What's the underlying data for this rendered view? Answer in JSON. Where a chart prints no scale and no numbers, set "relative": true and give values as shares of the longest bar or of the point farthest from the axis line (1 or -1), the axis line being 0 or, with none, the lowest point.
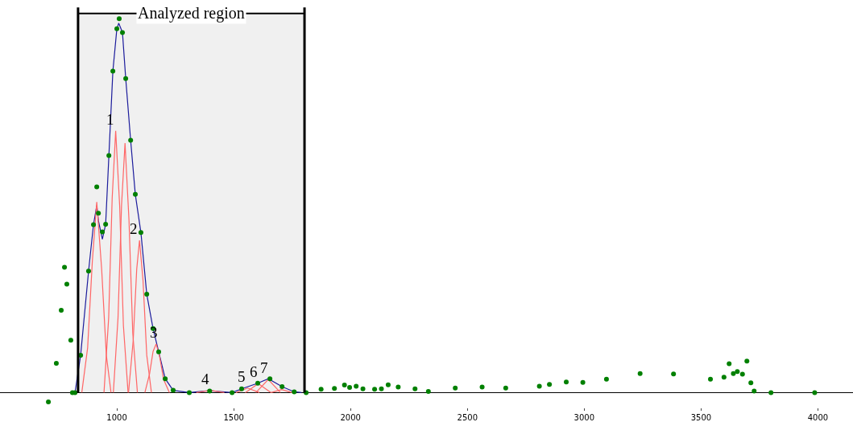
{
  "chart_data": {
    "type": "scatter",
    "relative": true,
    "xlim": [
      500,
      4150
    ],
    "xticks": [
      1000,
      1500,
      2000,
      2500,
      3000,
      3500,
      4000
    ],
    "grid": false,
    "line_style": "solid",
    "series": [
      {
        "marker": "circle",
        "color": "#008000",
        "x": [
          707,
          741,
          762,
          776,
          786,
          803,
          810,
          821,
          845,
          879,
          900,
          914,
          921,
          938,
          952,
          966,
          983,
          1000,
          1010,
          1024,
          1038,
          1059,
          1079,
          1103,
          1128,
          1155,
          1179,
          1207,
          1241,
          1310,
          1397,
          1493,
          1534,
          1603,
          1655,
          1707,
          1759,
          1810,
          1874,
          1931,
          1974,
          1996,
          2024,
          2053,
          2103,
          2132,
          2161,
          2204,
          2276,
          2333,
          2448,
          2563,
          2664,
          2808,
          2851,
          2923,
          2994,
          3095,
          3239,
          3382,
          3540,
          3598,
          3620,
          3638,
          3655,
          3677,
          3696,
          3713,
          3727,
          3799,
          3986
        ],
        "values": [
          -0.025,
          0.078,
          0.22,
          0.335,
          0.29,
          0.14,
          0,
          0,
          0.1,
          0.325,
          0.449,
          0.55,
          0.48,
          0.43,
          0.45,
          0.634,
          0.86,
          0.973,
          1.0,
          0.963,
          0.84,
          0.675,
          0.53,
          0.428,
          0.263,
          0.171,
          0.109,
          0.037,
          0.006,
          0,
          0.004,
          0,
          0.01,
          0.025,
          0.037,
          0.016,
          0.002,
          0,
          0.009,
          0.011,
          0.02,
          0.014,
          0.017,
          0.01,
          0.009,
          0.01,
          0.021,
          0.015,
          0.01,
          0.003,
          0.012,
          0.015,
          0.012,
          0.017,
          0.022,
          0.028,
          0.027,
          0.036,
          0.051,
          0.05,
          0.036,
          0.041,
          0.077,
          0.051,
          0.056,
          0.049,
          0.084,
          0.026,
          0.004,
          0,
          0
        ]
      },
      {
        "type": "line",
        "color": "#1c1c9c",
        "x": [
          821,
          845,
          879,
          900,
          914,
          921,
          938,
          952,
          966,
          983,
          1000,
          1008,
          1024,
          1038,
          1059,
          1079,
          1103,
          1128,
          1155,
          1179,
          1207,
          1241,
          1310,
          1397,
          1493,
          1534,
          1603,
          1648,
          1707,
          1759,
          1790
        ],
        "values": [
          0,
          0.1,
          0.325,
          0.449,
          0.5,
          0.46,
          0.41,
          0.45,
          0.634,
          0.86,
          0.973,
          0.988,
          0.963,
          0.84,
          0.675,
          0.53,
          0.428,
          0.263,
          0.171,
          0.109,
          0.037,
          0.006,
          0,
          0.005,
          0,
          0.01,
          0.025,
          0.037,
          0.016,
          0.002,
          0
        ]
      },
      {
        "type": "line",
        "color": "#ff6666",
        "x": [
          850,
          875,
          895,
          914,
          935,
          955,
          975
        ],
        "values": [
          0,
          0.12,
          0.35,
          0.51,
          0.33,
          0.1,
          0
        ]
      },
      {
        "type": "line",
        "color": "#ff6666",
        "x": [
          945,
          965,
          980,
          995,
          1012,
          1028,
          1048
        ],
        "values": [
          0,
          0.2,
          0.52,
          0.7,
          0.5,
          0.18,
          0
        ]
      },
      {
        "type": "line",
        "color": "#ff6666",
        "x": [
          985,
          1005,
          1020,
          1035,
          1052,
          1068,
          1088
        ],
        "values": [
          0,
          0.2,
          0.5,
          0.667,
          0.46,
          0.16,
          0
        ]
      },
      {
        "type": "line",
        "color": "#ff6666",
        "x": [
          1050,
          1070,
          1085,
          1097,
          1112,
          1128,
          1148
        ],
        "values": [
          0,
          0.14,
          0.33,
          0.407,
          0.3,
          0.1,
          0
        ]
      },
      {
        "type": "line",
        "color": "#ff6666",
        "x": [
          1120,
          1140,
          1155,
          1168,
          1182,
          1200,
          1225
        ],
        "values": [
          0,
          0.05,
          0.11,
          0.13,
          0.1,
          0.035,
          0
        ]
      },
      {
        "type": "line",
        "color": "#ff6666",
        "x": [
          1340,
          1400,
          1460
        ],
        "values": [
          0,
          0.006,
          0
        ]
      },
      {
        "type": "line",
        "color": "#ff6666",
        "x": [
          1510,
          1560,
          1610
        ],
        "values": [
          0,
          0.012,
          0
        ]
      },
      {
        "type": "line",
        "color": "#ff6666",
        "x": [
          1550,
          1605,
          1660
        ],
        "values": [
          0,
          0.024,
          0
        ]
      },
      {
        "type": "line",
        "color": "#ff6666",
        "x": [
          1595,
          1648,
          1700
        ],
        "values": [
          0,
          0.035,
          0
        ]
      },
      {
        "type": "line",
        "color": "#ff6666",
        "x": [
          1660,
          1705,
          1750
        ],
        "values": [
          0,
          0.008,
          0
        ]
      }
    ],
    "ref_lines": [
      {
        "axis": "x",
        "value": 834,
        "color": "#000000"
      },
      {
        "axis": "x",
        "value": 1803,
        "color": "#000000"
      }
    ],
    "bands": [
      {
        "axis": "x",
        "from": 834,
        "to": 1803,
        "label": "Analyzed region",
        "color": "#000000"
      }
    ],
    "annotations": [
      {
        "text": "1",
        "x": 993,
        "y": 0.7
      },
      {
        "text": "2",
        "x": 1092,
        "y": 0.407
      },
      {
        "text": "3",
        "x": 1178,
        "y": 0.13
      },
      {
        "text": "4",
        "x": 1400,
        "y": 0.006
      },
      {
        "text": "5",
        "x": 1555,
        "y": 0.012
      },
      {
        "text": "6",
        "x": 1605,
        "y": 0.024
      },
      {
        "text": "7",
        "x": 1650,
        "y": 0.035
      }
    ]
  }
}
